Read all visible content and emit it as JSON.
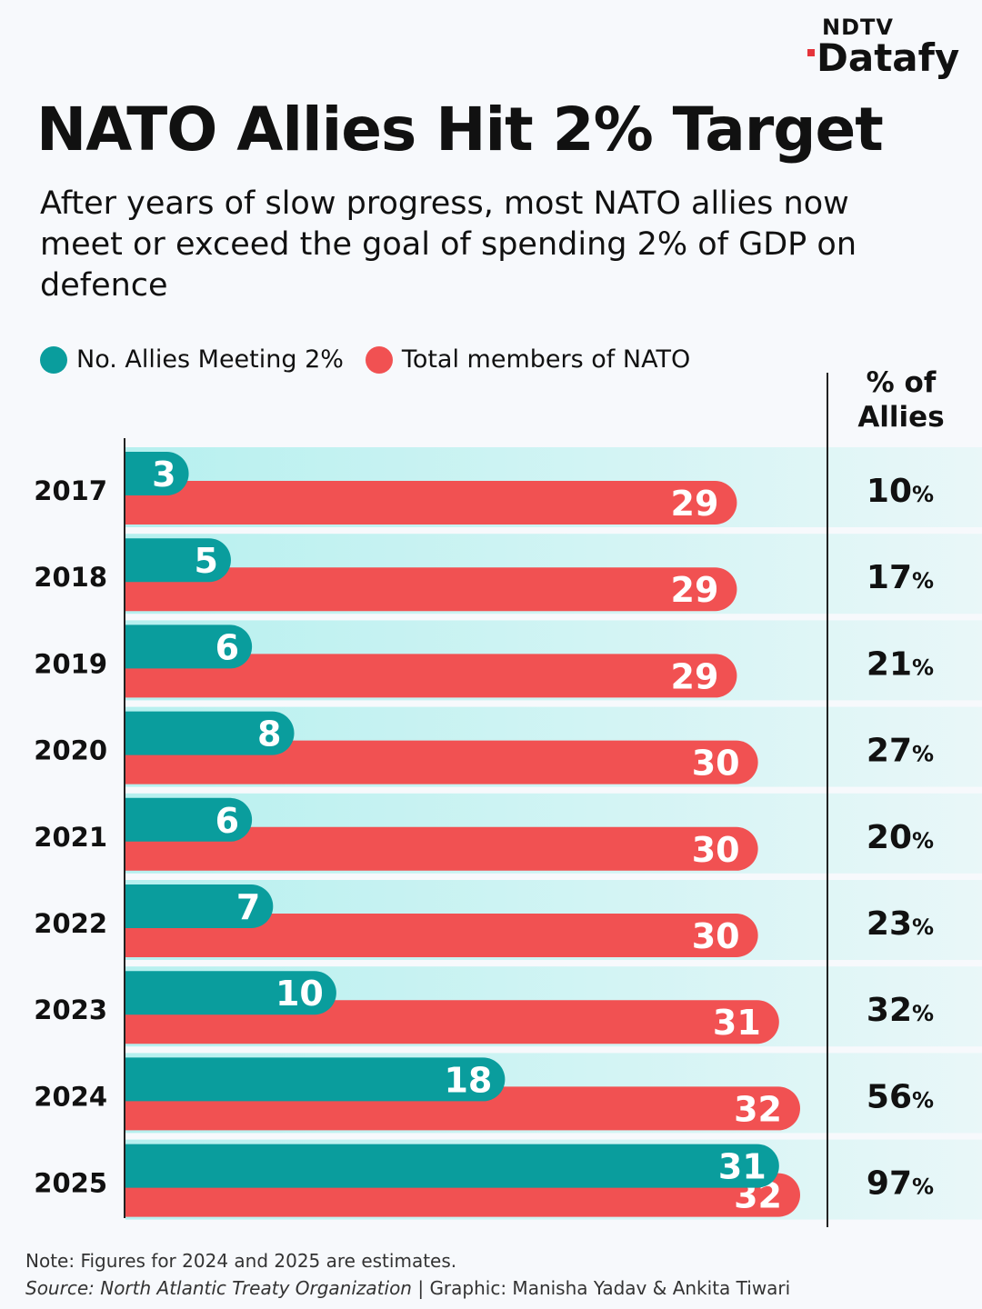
{
  "brand": {
    "top": "NDTV",
    "main": "Datafy"
  },
  "title": "NATO Allies Hit 2% Target",
  "subtitle": "After years of slow progress, most NATO allies now meet or exceed the goal of spending 2% of GDP on defence",
  "legend": [
    {
      "label": "No. Allies Meeting 2%",
      "color": "#0a9d9d"
    },
    {
      "label": "Total members of NATO",
      "color": "#f15152"
    }
  ],
  "pct_header": {
    "line1": "% of",
    "line2": "Allies"
  },
  "chart_data": {
    "type": "bar",
    "orientation": "horizontal",
    "categories": [
      "2017",
      "2018",
      "2019",
      "2020",
      "2021",
      "2022",
      "2023",
      "2024",
      "2025"
    ],
    "series": [
      {
        "name": "No. Allies Meeting 2%",
        "values": [
          3,
          5,
          6,
          8,
          6,
          7,
          10,
          18,
          31
        ],
        "color": "#0a9d9d"
      },
      {
        "name": "Total members of NATO",
        "values": [
          29,
          29,
          29,
          30,
          30,
          30,
          31,
          32,
          32
        ],
        "color": "#f15152"
      }
    ],
    "percent_of_allies": [
      "10",
      "17",
      "21",
      "27",
      "20",
      "23",
      "32",
      "56",
      "97"
    ],
    "percent_suffix": "%",
    "xlim": [
      0,
      32
    ]
  },
  "footer": {
    "note": "Note: Figures for 2024 and 2025 are estimates.",
    "source": "Source: North Atlantic Treaty Organization",
    "separator": " |  ",
    "credit": "Graphic: Manisha Yadav & Ankita Tiwari"
  }
}
